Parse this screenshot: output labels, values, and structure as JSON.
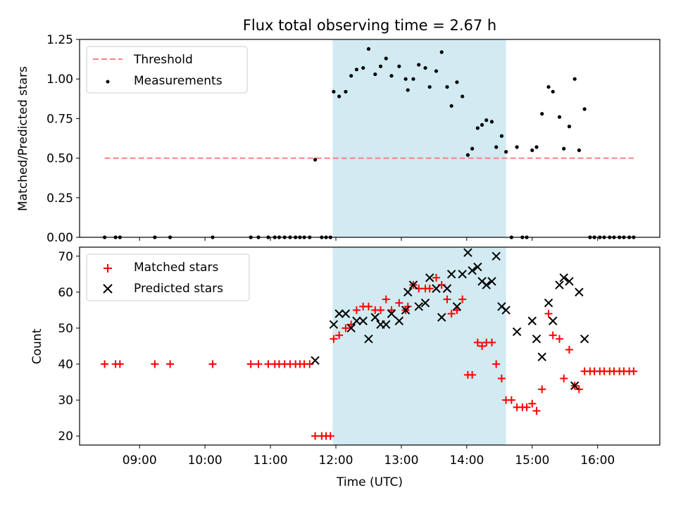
{
  "chart_data": [
    {
      "type": "scatter",
      "title": "Flux total observing time = 2.67 h",
      "xlabel": "",
      "ylabel": "Matched/Predicted stars",
      "ylim": [
        0,
        1.25
      ],
      "yticks": [
        "0.00",
        "0.25",
        "0.50",
        "0.75",
        "1.00",
        "1.25"
      ],
      "xlim": [
        "08:05",
        "16:57"
      ],
      "legend": {
        "placement": "upper left",
        "entries": [
          "Threshold",
          "Measurements"
        ]
      },
      "highlight": {
        "from": "11:57",
        "to": "14:36",
        "color": "#add8e6"
      },
      "threshold": {
        "name": "Threshold",
        "value": 0.5,
        "from": "08:28",
        "to": "16:33",
        "color": "#ff7f7f"
      },
      "series": [
        {
          "name": "Measurements",
          "color": "#000000",
          "points": [
            [
              "08:28",
              0.0
            ],
            [
              "08:38",
              0.0
            ],
            [
              "08:42",
              0.0
            ],
            [
              "09:14",
              0.0
            ],
            [
              "09:28",
              0.0
            ],
            [
              "10:07",
              0.0
            ],
            [
              "10:42",
              0.0
            ],
            [
              "10:49",
              0.0
            ],
            [
              "10:58",
              0.0
            ],
            [
              "11:04",
              0.0
            ],
            [
              "11:08",
              0.0
            ],
            [
              "11:13",
              0.0
            ],
            [
              "11:18",
              0.0
            ],
            [
              "11:23",
              0.0
            ],
            [
              "11:27",
              0.0
            ],
            [
              "11:31",
              0.0
            ],
            [
              "11:36",
              0.0
            ],
            [
              "11:41",
              0.49
            ],
            [
              "11:47",
              0.0
            ],
            [
              "11:51",
              0.0
            ],
            [
              "11:55",
              0.0
            ],
            [
              "11:58",
              0.92
            ],
            [
              "12:03",
              0.89
            ],
            [
              "12:09",
              0.92
            ],
            [
              "12:14",
              1.02
            ],
            [
              "12:19",
              1.06
            ],
            [
              "12:25",
              1.07
            ],
            [
              "12:30",
              1.19
            ],
            [
              "12:36",
              1.03
            ],
            [
              "12:41",
              1.08
            ],
            [
              "12:46",
              1.13
            ],
            [
              "12:51",
              1.02
            ],
            [
              "12:58",
              1.08
            ],
            [
              "13:04",
              1.0
            ],
            [
              "13:06",
              0.93
            ],
            [
              "13:11",
              1.0
            ],
            [
              "13:16",
              1.09
            ],
            [
              "13:22",
              1.07
            ],
            [
              "13:26",
              0.95
            ],
            [
              "13:32",
              1.05
            ],
            [
              "13:37",
              1.17
            ],
            [
              "13:42",
              0.95
            ],
            [
              "13:46",
              0.83
            ],
            [
              "13:51",
              0.98
            ],
            [
              "13:56",
              0.89
            ],
            [
              "14:01",
              0.52
            ],
            [
              "14:05",
              0.56
            ],
            [
              "14:10",
              0.69
            ],
            [
              "14:14",
              0.71
            ],
            [
              "14:18",
              0.74
            ],
            [
              "14:23",
              0.73
            ],
            [
              "14:27",
              0.57
            ],
            [
              "14:32",
              0.64
            ],
            [
              "14:36",
              0.54
            ],
            [
              "14:41",
              0.0
            ],
            [
              "14:46",
              0.57
            ],
            [
              "14:51",
              0.0
            ],
            [
              "14:55",
              0.0
            ],
            [
              "15:00",
              0.55
            ],
            [
              "15:04",
              0.57
            ],
            [
              "15:09",
              0.78
            ],
            [
              "15:15",
              0.95
            ],
            [
              "15:19",
              0.92
            ],
            [
              "15:25",
              0.76
            ],
            [
              "15:29",
              0.56
            ],
            [
              "15:34",
              0.7
            ],
            [
              "15:39",
              1.0
            ],
            [
              "15:43",
              0.55
            ],
            [
              "15:48",
              0.81
            ],
            [
              "15:53",
              0.0
            ],
            [
              "15:57",
              0.0
            ],
            [
              "16:02",
              0.0
            ],
            [
              "16:06",
              0.0
            ],
            [
              "16:11",
              0.0
            ],
            [
              "16:15",
              0.0
            ],
            [
              "16:20",
              0.0
            ],
            [
              "16:24",
              0.0
            ],
            [
              "16:29",
              0.0
            ],
            [
              "16:33",
              0.0
            ]
          ]
        }
      ]
    },
    {
      "type": "scatter",
      "title": "",
      "xlabel": "Time (UTC)",
      "ylabel": "Count",
      "ylim": [
        17.5,
        72.5
      ],
      "yticks": [
        "20",
        "30",
        "40",
        "50",
        "60",
        "70"
      ],
      "xlim": [
        "08:05",
        "16:57"
      ],
      "xticks": [
        "09:00",
        "10:00",
        "11:00",
        "12:00",
        "13:00",
        "14:00",
        "15:00",
        "16:00"
      ],
      "legend": {
        "placement": "upper left",
        "entries": [
          "Matched stars",
          "Predicted stars"
        ]
      },
      "highlight": {
        "from": "11:57",
        "to": "14:36",
        "color": "#add8e6"
      },
      "series": [
        {
          "name": "Matched stars",
          "color": "#ff0000",
          "marker": "+",
          "points": [
            [
              "08:28",
              40
            ],
            [
              "08:38",
              40
            ],
            [
              "08:42",
              40
            ],
            [
              "09:14",
              40
            ],
            [
              "09:28",
              40
            ],
            [
              "10:07",
              40
            ],
            [
              "10:42",
              40
            ],
            [
              "10:49",
              40
            ],
            [
              "10:58",
              40
            ],
            [
              "11:04",
              40
            ],
            [
              "11:08",
              40
            ],
            [
              "11:13",
              40
            ],
            [
              "11:18",
              40
            ],
            [
              "11:23",
              40
            ],
            [
              "11:27",
              40
            ],
            [
              "11:31",
              40
            ],
            [
              "11:36",
              40
            ],
            [
              "11:41",
              20
            ],
            [
              "11:47",
              20
            ],
            [
              "11:51",
              20
            ],
            [
              "11:55",
              20
            ],
            [
              "11:58",
              47
            ],
            [
              "12:03",
              48
            ],
            [
              "12:09",
              50
            ],
            [
              "12:14",
              51
            ],
            [
              "12:19",
              55
            ],
            [
              "12:25",
              56
            ],
            [
              "12:30",
              56
            ],
            [
              "12:36",
              55
            ],
            [
              "12:41",
              55
            ],
            [
              "12:46",
              58
            ],
            [
              "12:51",
              55
            ],
            [
              "12:58",
              57
            ],
            [
              "13:04",
              55
            ],
            [
              "13:06",
              56
            ],
            [
              "13:11",
              62
            ],
            [
              "13:16",
              61
            ],
            [
              "13:22",
              61
            ],
            [
              "13:26",
              61
            ],
            [
              "13:32",
              64
            ],
            [
              "13:37",
              62
            ],
            [
              "13:42",
              58
            ],
            [
              "13:46",
              54
            ],
            [
              "13:51",
              55
            ],
            [
              "13:56",
              58
            ],
            [
              "14:01",
              37
            ],
            [
              "14:05",
              37
            ],
            [
              "14:10",
              46
            ],
            [
              "14:14",
              45
            ],
            [
              "14:18",
              46
            ],
            [
              "14:23",
              46
            ],
            [
              "14:27",
              40
            ],
            [
              "14:32",
              36
            ],
            [
              "14:36",
              30
            ],
            [
              "14:41",
              30
            ],
            [
              "14:46",
              28
            ],
            [
              "14:51",
              28
            ],
            [
              "14:55",
              28
            ],
            [
              "15:00",
              29
            ],
            [
              "15:04",
              27
            ],
            [
              "15:09",
              33
            ],
            [
              "15:15",
              54
            ],
            [
              "15:19",
              48
            ],
            [
              "15:25",
              47
            ],
            [
              "15:29",
              36
            ],
            [
              "15:34",
              44
            ],
            [
              "15:39",
              34
            ],
            [
              "15:43",
              33
            ],
            [
              "15:48",
              38
            ],
            [
              "15:53",
              38
            ],
            [
              "15:57",
              38
            ],
            [
              "16:02",
              38
            ],
            [
              "16:06",
              38
            ],
            [
              "16:11",
              38
            ],
            [
              "16:15",
              38
            ],
            [
              "16:20",
              38
            ],
            [
              "16:24",
              38
            ],
            [
              "16:29",
              38
            ],
            [
              "16:33",
              38
            ]
          ]
        },
        {
          "name": "Predicted stars",
          "color": "#000000",
          "marker": "x",
          "points": [
            [
              "11:41",
              41
            ],
            [
              "11:58",
              51
            ],
            [
              "12:03",
              54
            ],
            [
              "12:09",
              54
            ],
            [
              "12:14",
              50
            ],
            [
              "12:19",
              52
            ],
            [
              "12:25",
              52
            ],
            [
              "12:30",
              47
            ],
            [
              "12:36",
              53
            ],
            [
              "12:41",
              51
            ],
            [
              "12:46",
              51
            ],
            [
              "12:51",
              54
            ],
            [
              "12:58",
              52
            ],
            [
              "13:04",
              55
            ],
            [
              "13:06",
              60
            ],
            [
              "13:11",
              62
            ],
            [
              "13:16",
              56
            ],
            [
              "13:22",
              57
            ],
            [
              "13:26",
              64
            ],
            [
              "13:32",
              61
            ],
            [
              "13:37",
              53
            ],
            [
              "13:42",
              61
            ],
            [
              "13:46",
              65
            ],
            [
              "13:51",
              56
            ],
            [
              "13:56",
              65
            ],
            [
              "14:01",
              71
            ],
            [
              "14:05",
              66
            ],
            [
              "14:10",
              67
            ],
            [
              "14:14",
              63
            ],
            [
              "14:18",
              62
            ],
            [
              "14:23",
              63
            ],
            [
              "14:27",
              70
            ],
            [
              "14:32",
              56
            ],
            [
              "14:36",
              55
            ],
            [
              "14:46",
              49
            ],
            [
              "15:00",
              52
            ],
            [
              "15:04",
              47
            ],
            [
              "15:09",
              42
            ],
            [
              "15:15",
              57
            ],
            [
              "15:19",
              52
            ],
            [
              "15:25",
              62
            ],
            [
              "15:29",
              64
            ],
            [
              "15:34",
              63
            ],
            [
              "15:39",
              34
            ],
            [
              "15:43",
              60
            ],
            [
              "15:48",
              47
            ]
          ]
        }
      ]
    }
  ]
}
